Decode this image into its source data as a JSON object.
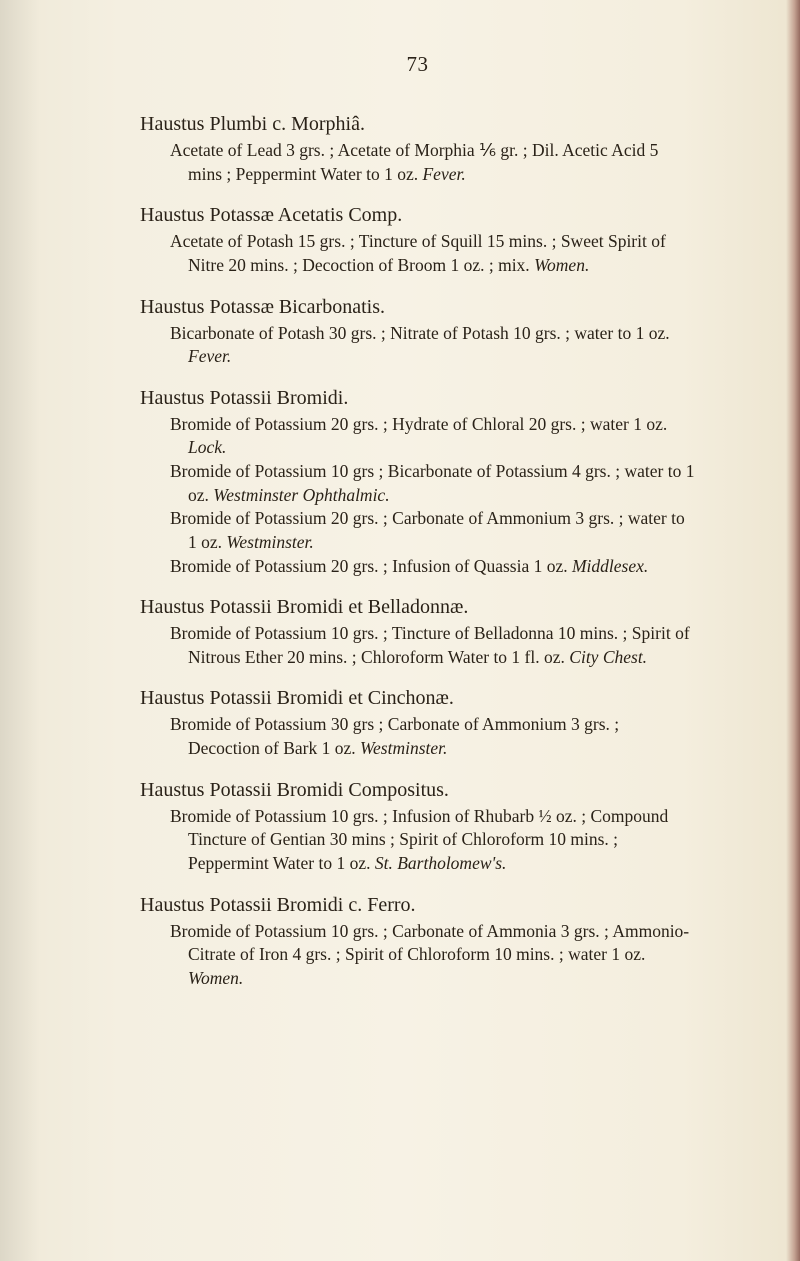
{
  "page_number": "73",
  "typography": {
    "title_fontsize_pt": 15,
    "desc_fontsize_pt": 13,
    "font_family": "Georgia serif"
  },
  "colors": {
    "paper_bg": "#f5f0e4",
    "text": "#2a2218",
    "right_edge": "#7a2a1e"
  },
  "entries": [
    {
      "title": "Haustus Plumbi c. Morphiâ.",
      "descs": [
        "Acetate of Lead 3 grs. ; Acetate of Morphia ⅙ gr. ; Dil. Acetic Acid 5 mins ; Peppermint Water to 1 oz. <em>Fever.</em>"
      ]
    },
    {
      "title": "Haustus Potassæ Acetatis Comp.",
      "descs": [
        "Acetate of Potash 15 grs. ; Tincture of Squill 15 mins. ; Sweet Spirit of Nitre 20 mins. ; Decoction of Broom 1 oz. ; mix. <em>Women.</em>"
      ]
    },
    {
      "title": "Haustus Potassæ Bicarbonatis.",
      "descs": [
        "Bicarbonate of Potash 30 grs. ; Nitrate of Potash 10 grs. ; water to 1 oz. <em>Fever.</em>"
      ]
    },
    {
      "title": "Haustus Potassii Bromidi.",
      "descs": [
        "Bromide of Potassium 20 grs. ; Hydrate of Chloral 20 grs. ; water 1 oz. <em>Lock.</em>",
        "Bromide of Potassium 10 grs ; Bicarbonate of Potassium 4 grs. ; water to 1 oz. <em>Westminster Ophthalmic.</em>",
        "Bromide of Potassium 20 grs. ; Carbonate of Ammonium 3 grs. ; water to 1 oz. <em>Westminster.</em>",
        "Bromide of Potassium 20 grs. ; Infusion of Quassia 1 oz. <em>Middlesex.</em>"
      ]
    },
    {
      "title": "Haustus Potassii Bromidi et Belladonnæ.",
      "descs": [
        "Bromide of Potassium 10 grs. ; Tincture of Belladonna 10 mins. ; Spirit of Nitrous Ether 20 mins. ; Chloroform Water to 1 fl. oz. <em>City Chest.</em>"
      ]
    },
    {
      "title": "Haustus Potassii Bromidi et Cinchonæ.",
      "descs": [
        "Bromide of Potassium 30 grs ; Carbonate of Ammonium 3 grs. ; Decoction of Bark 1 oz. <em>Westminster.</em>"
      ]
    },
    {
      "title": "Haustus Potassii Bromidi Compositus.",
      "descs": [
        "Bromide of Potassium 10 grs. ; Infusion of Rhubarb ½ oz. ; Compound Tincture of Gentian 30 mins ; Spirit of Chloroform 10 mins. ; Peppermint Water to 1 oz. <em>St. Bartholomew's.</em>"
      ]
    },
    {
      "title": "Haustus Potassii Bromidi c. Ferro.",
      "descs": [
        "Bromide of Potassium 10 grs. ; Carbonate of Ammonia 3 grs. ; Ammonio-Citrate of Iron 4 grs. ; Spirit of Chloroform 10 mins. ; water 1 oz. <em>Women.</em>"
      ]
    }
  ]
}
